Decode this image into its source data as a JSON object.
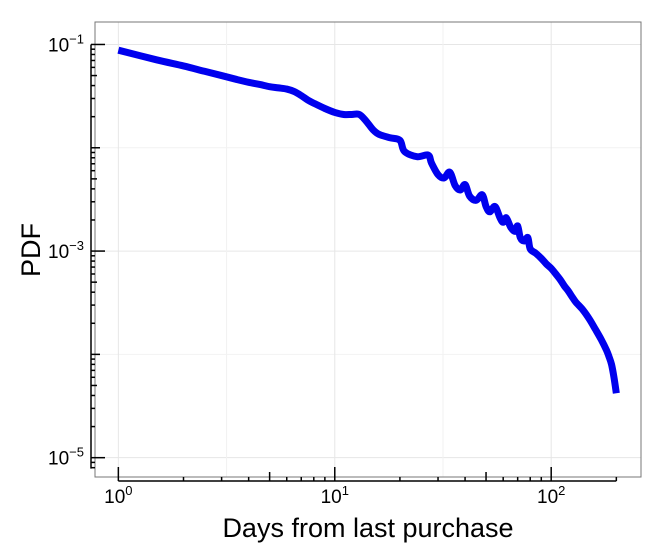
{
  "chart_data": {
    "type": "line",
    "title": "",
    "xlabel": "Days from last purchase",
    "ylabel": "PDF",
    "x_scale": "log",
    "y_scale": "log",
    "xlim": [
      0.78,
      260
    ],
    "ylim": [
      6.5e-06,
      0.165
    ],
    "grid": true,
    "line_color": "#0000ee",
    "x_ticks": [
      {
        "base": "10",
        "exp": "0",
        "value": 1
      },
      {
        "base": "10",
        "exp": "1",
        "value": 10
      },
      {
        "base": "10",
        "exp": "2",
        "value": 100
      }
    ],
    "y_ticks": [
      {
        "base": "10",
        "exp": "−1",
        "value": 0.1
      },
      {
        "base": "10",
        "exp": "−3",
        "value": 0.001
      },
      {
        "base": "10",
        "exp": "−5",
        "value": 1e-05
      }
    ],
    "series": [
      {
        "x": [
          1,
          1.5,
          2,
          2.5,
          3,
          3.5,
          4,
          4.5,
          5,
          5.5,
          6,
          6.5,
          7,
          7.5,
          8,
          9,
          10,
          11,
          12,
          13,
          14,
          15,
          16,
          18,
          20,
          21,
          24,
          27,
          28,
          30,
          32,
          34,
          36,
          38,
          40,
          42,
          45,
          48,
          50,
          52,
          55,
          58,
          60,
          62,
          65,
          68,
          70,
          72,
          75,
          78,
          80,
          85,
          90,
          95,
          100,
          105,
          110,
          115,
          120,
          125,
          130,
          140,
          150,
          160,
          170,
          180,
          185,
          190,
          195,
          200
        ],
        "y": [
          0.088,
          0.071,
          0.062,
          0.055,
          0.05,
          0.046,
          0.043,
          0.041,
          0.039,
          0.038,
          0.037,
          0.035,
          0.032,
          0.029,
          0.027,
          0.024,
          0.022,
          0.021,
          0.021,
          0.021,
          0.018,
          0.015,
          0.0135,
          0.0125,
          0.0118,
          0.0092,
          0.0082,
          0.0085,
          0.0071,
          0.0055,
          0.0051,
          0.0058,
          0.0043,
          0.0039,
          0.0044,
          0.0034,
          0.0031,
          0.0035,
          0.0027,
          0.0024,
          0.0027,
          0.0021,
          0.0019,
          0.0021,
          0.0017,
          0.00155,
          0.00175,
          0.00135,
          0.00125,
          0.00135,
          0.00105,
          0.00095,
          0.00085,
          0.00075,
          0.00068,
          0.0006,
          0.00053,
          0.00046,
          0.00041,
          0.00036,
          0.00032,
          0.00027,
          0.00022,
          0.000175,
          0.00014,
          0.00011,
          9.5e-05,
          8e-05,
          6e-05,
          4.2e-05
        ]
      }
    ]
  }
}
